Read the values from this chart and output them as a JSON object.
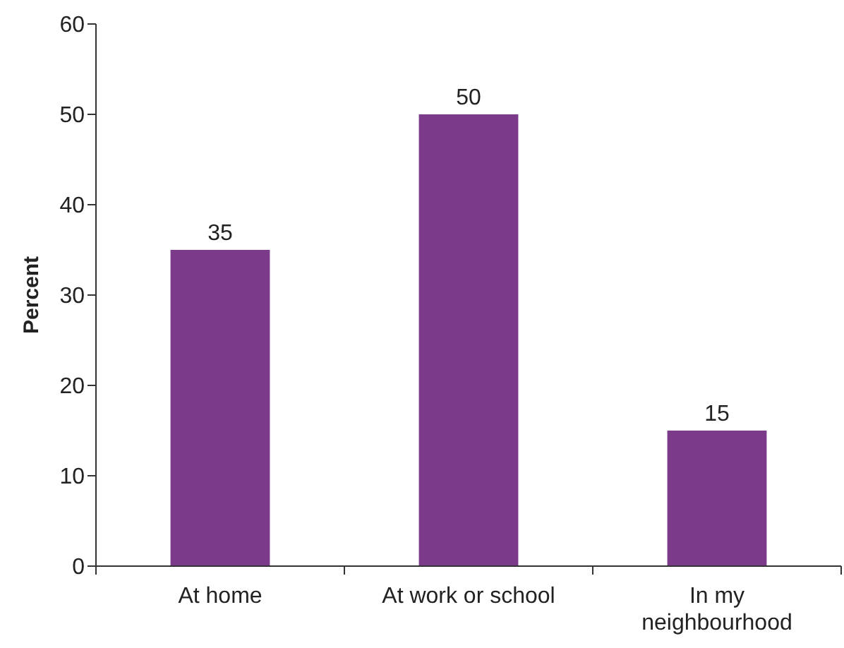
{
  "chart_data": {
    "type": "bar",
    "ylabel": "Percent",
    "categories": [
      "At home",
      "At work or school",
      "In my neighbourhood"
    ],
    "values": [
      35,
      50,
      15
    ],
    "color": "#7b3a8a",
    "data_labels": true,
    "ylim": [
      0,
      60
    ],
    "yticks": [
      0,
      10,
      20,
      30,
      40,
      50,
      60
    ],
    "grid": false
  }
}
